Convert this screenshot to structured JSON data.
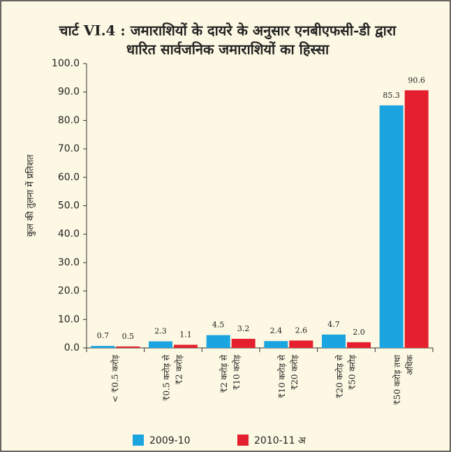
{
  "chart_data": {
    "type": "bar",
    "title": [
      "चार्ट VI.4 : जमाराशियों के दायरे के अनुसार एनबीएफसी-डी द्वारा",
      "धारित सार्वजनिक जमाराशियों का हिस्सा"
    ],
    "y_label": "कुल की तुलना में प्रतिशत",
    "categories": [
      [
        "< ₹0.5 करोड़"
      ],
      [
        "₹0.5 करोड़ से",
        "₹2 करोड़"
      ],
      [
        "₹2 करोड़ से",
        "₹10 करोड़"
      ],
      [
        "₹10 करोड़ से",
        "₹20 करोड़"
      ],
      [
        "₹20 करोड़ से",
        "₹50 करोड़"
      ],
      [
        "₹50 करोड़ तथा",
        "अधिक"
      ]
    ],
    "series": [
      {
        "name": "2009-10",
        "color": "#1ba5e0",
        "values": [
          0.7,
          2.3,
          4.5,
          2.4,
          4.7,
          85.3
        ],
        "value_labels": [
          "0.7",
          "2.3",
          "4.5",
          "2.4",
          "4.7",
          "85.3"
        ]
      },
      {
        "name": "2010-11 अ",
        "color": "#e5202e",
        "values": [
          0.5,
          1.1,
          3.2,
          2.6,
          2.0,
          90.6
        ],
        "value_labels": [
          "0.5",
          "1.1",
          "3.2",
          "2.6",
          "2.0",
          "90.6"
        ]
      }
    ],
    "ylim": [
      0,
      100
    ],
    "yticks": [
      {
        "value": 0,
        "label": "0.0"
      },
      {
        "value": 10,
        "label": "10.0"
      },
      {
        "value": 20,
        "label": "20.0"
      },
      {
        "value": 30,
        "label": "30.0"
      },
      {
        "value": 40,
        "label": "40.0"
      },
      {
        "value": 50,
        "label": "50.0"
      },
      {
        "value": 60,
        "label": "60.0"
      },
      {
        "value": 70,
        "label": "70.0"
      },
      {
        "value": 80,
        "label": "80.0"
      },
      {
        "value": 90,
        "label": "90.0"
      },
      {
        "value": 100,
        "label": "100.0"
      }
    ]
  }
}
